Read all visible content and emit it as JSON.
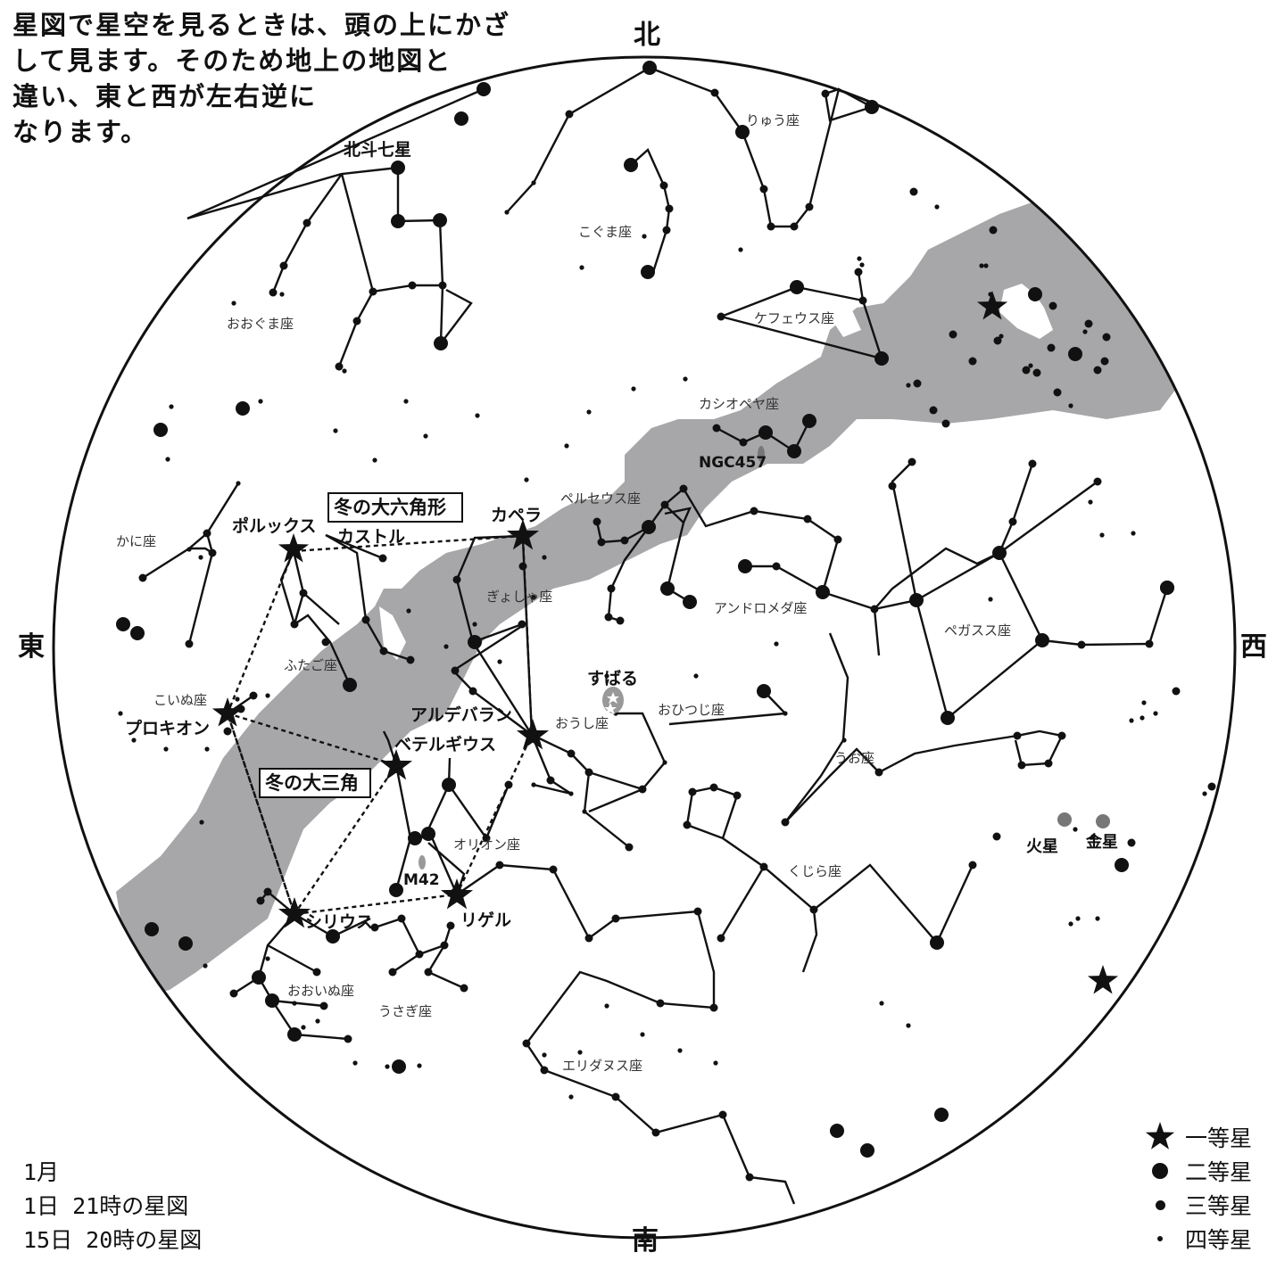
{
  "intro": {
    "line1": "星図で星空を見るときは、頭の上にかざ",
    "line2": "して見ます。そのため地上の地図と",
    "line3": "違い、東と西が左右逆に",
    "line4": "なります。"
  },
  "directions": {
    "north": "北",
    "south": "南",
    "east": "東",
    "west": "西"
  },
  "date": {
    "month": "1月",
    "line1": "1日 21時の星図",
    "line2": "15日 20時の星図"
  },
  "legend": [
    {
      "label": "一等星",
      "symbol": "star-icon"
    },
    {
      "label": "二等星",
      "symbol": "large-dot-icon"
    },
    {
      "label": "三等星",
      "symbol": "medium-dot-icon"
    },
    {
      "label": "四等星",
      "symbol": "small-dot-icon"
    }
  ],
  "colors": {
    "milky_way": "#a7a7a9",
    "ink": "#111111",
    "planet": "#777777"
  },
  "bold_labels": {
    "big_dipper": "北斗七星",
    "winter_hexagon": "冬の大六角形",
    "winter_triangle": "冬の大三角",
    "pollux": "ポルックス",
    "castor": "カストル",
    "capella": "カペラ",
    "procyon": "プロキオン",
    "betelgeuse": "ベテルギウス",
    "aldebaran": "アルデバラン",
    "sirius": "シリウス",
    "rigel": "リゲル",
    "subaru": "すばる",
    "ngc457": "NGC457",
    "m42": "M42",
    "mars": "火星",
    "venus": "金星"
  },
  "constellations": {
    "draco": "りゅう座",
    "ursa_minor": "こぐま座",
    "ursa_major": "おおぐま座",
    "cepheus": "ケフェウス座",
    "cassiopeia": "カシオペヤ座",
    "perseus": "ペルセウス座",
    "cancer": "かに座",
    "auriga": "ぎょしゃ座",
    "andromeda": "アンドロメダ座",
    "pegasus": "ペガスス座",
    "gemini": "ふたご座",
    "canis_minor": "こいぬ座",
    "aries": "おひつじ座",
    "taurus": "おうし座",
    "pisces": "うお座",
    "orion": "オリオン座",
    "cetus": "くじら座",
    "canis_major": "おおいぬ座",
    "lepus": "うさぎ座",
    "eridanus": "エリダヌス座"
  }
}
